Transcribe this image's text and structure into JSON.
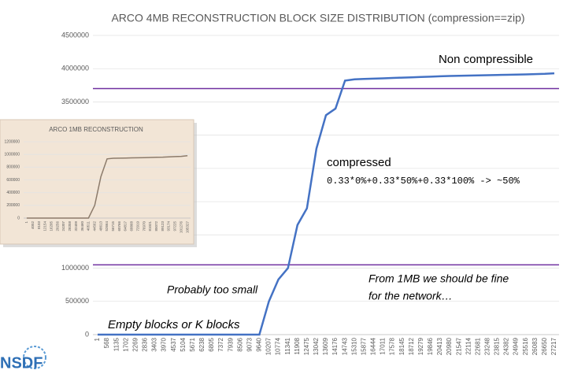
{
  "chart_data": [
    {
      "type": "line",
      "title": "ARCO 4MB RECONSTRUCTION BLOCK SIZE DISTRIBUTION (compression==zip)",
      "categories": [
        "1",
        "568",
        "1135",
        "1702",
        "2269",
        "2836",
        "3403",
        "3970",
        "4537",
        "5104",
        "5671",
        "6238",
        "6805",
        "7372",
        "7939",
        "8506",
        "9073",
        "9640",
        "10207",
        "10774",
        "11341",
        "11908",
        "12475",
        "13042",
        "13609",
        "14176",
        "14743",
        "15310",
        "15877",
        "16444",
        "17011",
        "17578",
        "18145",
        "18712",
        "19279",
        "19846",
        "20413",
        "20980",
        "21547",
        "22114",
        "22681",
        "23248",
        "23815",
        "24382",
        "24949",
        "25516",
        "26083",
        "26650",
        "27217"
      ],
      "values": [
        0,
        0,
        0,
        0,
        0,
        0,
        0,
        0,
        0,
        0,
        0,
        0,
        0,
        0,
        0,
        0,
        0,
        0,
        500000,
        830000,
        1000000,
        1650000,
        1900000,
        2800000,
        3300000,
        3400000,
        3820000,
        3840000,
        3845000,
        3850000,
        3855000,
        3860000,
        3865000,
        3870000,
        3875000,
        3880000,
        3885000,
        3890000,
        3893000,
        3896000,
        3899000,
        3902000,
        3905000,
        3908000,
        3911000,
        3914000,
        3918000,
        3922000,
        3930000
      ],
      "color": "#4472c4",
      "ylim": [
        0,
        4500000
      ],
      "yticks": [
        0,
        500000,
        1000000,
        1500000,
        2000000,
        2500000,
        3000000,
        3500000,
        4000000,
        4500000
      ],
      "grid": true,
      "hlines": [
        {
          "value": 3700000,
          "color": "#7030a0"
        },
        {
          "value": 1050000,
          "color": "#7030a0"
        }
      ],
      "annotations": [
        "Non compressible",
        "compressed",
        "0.33*0%+0.33*50%+0.33*100% -> ~50%",
        "From 1MB we should be fine",
        "for the network…",
        "Probably too small",
        "Empty blocks or K blocks"
      ]
    },
    {
      "type": "line",
      "title": "ARCO 1MB RECONSTRUCTION",
      "categories": [
        "1",
        "4052",
        "8103",
        "12154",
        "16205",
        "20256",
        "24307",
        "28358",
        "32409",
        "36460",
        "40511",
        "44562",
        "48613",
        "52664",
        "56715",
        "60766",
        "64817",
        "68868",
        "72919",
        "76970",
        "81021",
        "85072",
        "89123",
        "93174",
        "97225",
        "101276",
        "105327"
      ],
      "values": [
        0,
        0,
        0,
        0,
        0,
        0,
        0,
        0,
        0,
        0,
        0,
        200000,
        650000,
        930000,
        940000,
        942000,
        944000,
        946000,
        948000,
        950000,
        952000,
        955000,
        958000,
        962000,
        966000,
        970000,
        980000
      ],
      "color": "#8c7b6b",
      "ylim": [
        0,
        1200000
      ],
      "yticks": [
        0,
        200000,
        400000,
        600000,
        800000,
        1000000,
        1200000
      ],
      "grid": true
    }
  ],
  "logo": "NSDF"
}
